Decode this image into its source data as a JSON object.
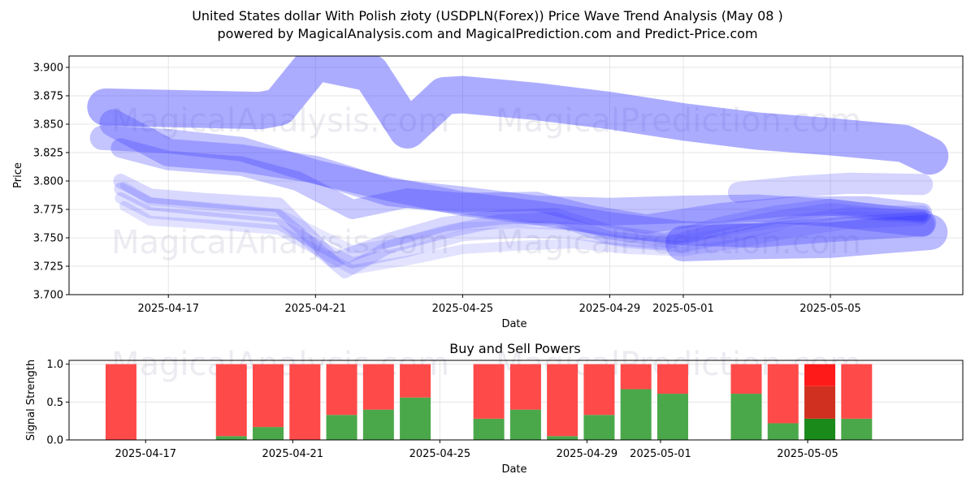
{
  "title": "United States dollar With Polish złoty (USDPLN(Forex)) Price Wave Trend Analysis (May 08 )",
  "subtitle": "powered by MagicalAnalysis.com and MagicalPrediction.com and Predict-Price.com",
  "watermarks": [
    "MagicalAnalysis.com",
    "MagicalPrediction.com"
  ],
  "colors": {
    "band": "#3a3aff",
    "buy": "#4aa84a",
    "sell": "#ff4a4a",
    "buy_dark": "#1a8a1a",
    "sell_dark": "#d03020",
    "grid": "#e5e5e5"
  },
  "chart_data": [
    {
      "type": "line",
      "title": "",
      "xlabel": "Date",
      "ylabel": "Price",
      "ylim": [
        3.7,
        3.91
      ],
      "xlim_days": [
        -2.7,
        21.6
      ],
      "x_tick_labels": [
        "2025-04-17",
        "2025-04-21",
        "2025-04-25",
        "2025-04-29",
        "2025-05-01",
        "2025-05-05"
      ],
      "x_tick_days": [
        0,
        4,
        8,
        12,
        14,
        18
      ],
      "y_ticks": [
        3.7,
        3.725,
        3.75,
        3.775,
        3.8,
        3.825,
        3.85,
        3.875,
        3.9
      ],
      "y_tick_labels": [
        "3.700",
        "3.725",
        "3.750",
        "3.775",
        "3.800",
        "3.825",
        "3.850",
        "3.875",
        "3.900"
      ],
      "x_day_origin": "2025-04-17",
      "series": [
        {
          "name": "wave-upper",
          "width": 46,
          "opacity": 0.42,
          "x": [
            -1.7,
            2.5,
            3.0,
            4.0,
            5.5,
            6.5,
            7.5,
            8.0,
            10.0,
            12.0,
            14.0,
            16.0,
            18.0,
            20.0,
            20.7
          ],
          "y": [
            3.865,
            3.862,
            3.865,
            3.905,
            3.895,
            3.845,
            3.875,
            3.876,
            3.87,
            3.862,
            3.852,
            3.844,
            3.839,
            3.833,
            3.822
          ]
        },
        {
          "name": "wave-a",
          "width": 34,
          "opacity": 0.3,
          "x": [
            -1.5,
            0.0,
            2.0,
            4.0,
            6.0,
            8.0,
            10.0,
            12.0,
            14.0,
            16.0,
            18.0,
            20.5
          ],
          "y": [
            3.851,
            3.825,
            3.82,
            3.81,
            3.79,
            3.783,
            3.775,
            3.773,
            3.775,
            3.776,
            3.772,
            3.763
          ]
        },
        {
          "name": "wave-b",
          "width": 30,
          "opacity": 0.3,
          "x": [
            -1.8,
            0.0,
            2.0,
            4.0,
            6.0,
            8.0,
            10.0,
            12.0,
            14.0,
            16.0,
            18.0,
            20.5
          ],
          "y": [
            3.838,
            3.835,
            3.828,
            3.808,
            3.793,
            3.78,
            3.772,
            3.762,
            3.754,
            3.752,
            3.757,
            3.762
          ]
        },
        {
          "name": "wave-c",
          "width": 24,
          "opacity": 0.28,
          "x": [
            -1.3,
            0.0,
            2.0,
            3.5,
            5.0,
            6.5,
            8.0,
            10.0,
            11.5,
            13.0,
            15.0,
            17.0,
            19.0,
            20.5
          ],
          "y": [
            3.829,
            3.818,
            3.813,
            3.8,
            3.775,
            3.785,
            3.781,
            3.782,
            3.77,
            3.762,
            3.772,
            3.778,
            3.778,
            3.772
          ]
        },
        {
          "name": "wave-d",
          "width": 18,
          "opacity": 0.2,
          "x": [
            -1.3,
            -0.5,
            1.0,
            3.0,
            4.5,
            6.0,
            7.5,
            9.0,
            10.5,
            12.0,
            13.5,
            15.0,
            16.5,
            18.0,
            19.5,
            20.5
          ],
          "y": [
            3.8,
            3.787,
            3.783,
            3.779,
            3.73,
            3.748,
            3.762,
            3.768,
            3.77,
            3.755,
            3.748,
            3.762,
            3.772,
            3.778,
            3.772,
            3.772
          ]
        },
        {
          "name": "wave-e",
          "width": 16,
          "opacity": 0.18,
          "x": [
            -1.3,
            -0.5,
            1.0,
            3.0,
            4.8,
            6.0,
            7.5,
            9.0,
            10.5,
            12.0,
            13.5,
            15.0,
            16.5,
            18.0,
            19.5,
            20.5
          ],
          "y": [
            3.793,
            3.78,
            3.775,
            3.769,
            3.72,
            3.742,
            3.755,
            3.765,
            3.767,
            3.75,
            3.745,
            3.758,
            3.768,
            3.775,
            3.77,
            3.768
          ]
        },
        {
          "name": "wave-f",
          "width": 14,
          "opacity": 0.16,
          "x": [
            -1.3,
            -0.5,
            1.0,
            3.0,
            5.0,
            6.5,
            8.0,
            9.5,
            11.0,
            12.5,
            14.0,
            15.5,
            17.0,
            18.5,
            20.5
          ],
          "y": [
            3.785,
            3.772,
            3.768,
            3.762,
            3.728,
            3.738,
            3.752,
            3.755,
            3.754,
            3.746,
            3.742,
            3.752,
            3.765,
            3.772,
            3.77
          ]
        },
        {
          "name": "wave-g",
          "width": 12,
          "opacity": 0.14,
          "x": [
            -1.2,
            -0.5,
            1.0,
            3.0,
            5.0,
            6.5,
            8.0,
            9.5,
            11.0,
            12.5,
            14.0,
            15.5,
            17.0,
            18.5,
            20.5
          ],
          "y": [
            3.778,
            3.765,
            3.762,
            3.757,
            3.722,
            3.73,
            3.74,
            3.743,
            3.745,
            3.74,
            3.738,
            3.745,
            3.755,
            3.762,
            3.765
          ]
        },
        {
          "name": "wave-h",
          "width": 10,
          "opacity": 0.12,
          "x": [
            -1.2,
            -0.5,
            1.0,
            3.0,
            5.0,
            6.5,
            8.0,
            9.5,
            11.0,
            12.5,
            14.0,
            15.5,
            17.0,
            18.5,
            20.5
          ],
          "y": [
            3.796,
            3.782,
            3.778,
            3.772,
            3.74,
            3.748,
            3.76,
            3.762,
            3.76,
            3.752,
            3.749,
            3.757,
            3.765,
            3.77,
            3.768
          ]
        },
        {
          "name": "wave-lower",
          "width": 44,
          "opacity": 0.35,
          "x": [
            14.0,
            16.0,
            18.0,
            19.5,
            20.7
          ],
          "y": [
            3.745,
            3.747,
            3.748,
            3.752,
            3.755
          ]
        },
        {
          "name": "wave-right",
          "width": 26,
          "opacity": 0.22,
          "x": [
            15.5,
            17.0,
            18.5,
            20.5
          ],
          "y": [
            3.79,
            3.795,
            3.798,
            3.797
          ]
        }
      ]
    },
    {
      "type": "bar",
      "title": "Buy and Sell Powers",
      "xlabel": "Date",
      "ylabel": "Signal Strength",
      "ylim": [
        0,
        1.05
      ],
      "y_ticks": [
        0,
        0.5,
        1
      ],
      "y_tick_labels": [
        "0.0",
        "0.5",
        "1.0"
      ],
      "x_tick_labels": [
        "2025-04-17",
        "2025-04-21",
        "2025-04-25",
        "2025-04-29",
        "2025-05-01",
        "2025-05-05"
      ],
      "x_tick_days": [
        0,
        4,
        8,
        12,
        14,
        18
      ],
      "days": [
        -1,
        2,
        3,
        4,
        5,
        6,
        7,
        9,
        10,
        11,
        12,
        13,
        14,
        16,
        17,
        18,
        19
      ],
      "buy": [
        0.0,
        0.05,
        0.17,
        0.0,
        0.33,
        0.4,
        0.56,
        0.28,
        0.4,
        0.05,
        0.33,
        0.67,
        0.61,
        0.61,
        0.22,
        0.28,
        0.28
      ],
      "sell": [
        1.0,
        0.95,
        0.83,
        1.0,
        0.67,
        0.6,
        0.44,
        0.72,
        0.6,
        0.95,
        0.67,
        0.33,
        0.39,
        0.39,
        0.78,
        0.72,
        0.72
      ],
      "highlight_index": 15,
      "highlight_sell_split": 0.71
    }
  ]
}
